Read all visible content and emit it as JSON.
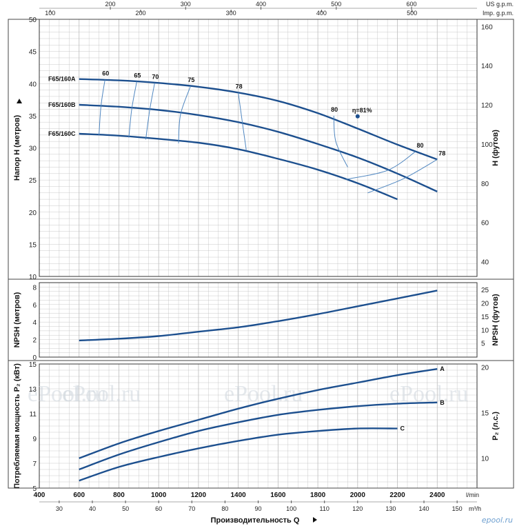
{
  "chart_data": [
    {
      "type": "line",
      "panel": "head",
      "ylabel": "Напор H (метров)",
      "y2label": "H (футов)",
      "ylim": [
        10,
        50
      ],
      "y2lim": [
        32.8,
        164
      ],
      "yticks": [
        10,
        15,
        20,
        25,
        30,
        35,
        40,
        45,
        50
      ],
      "y2ticks": [
        40,
        60,
        80,
        100,
        120,
        140,
        160
      ],
      "top_axes": [
        {
          "label": "US g.p.m.",
          "ticks": [
            200,
            300,
            400,
            500,
            600
          ]
        },
        {
          "label": "Imp. g.p.m.",
          "ticks": [
            100,
            200,
            300,
            400,
            500
          ]
        }
      ],
      "series": [
        {
          "name": "F65/160A",
          "x": [
            600,
            800,
            1000,
            1200,
            1400,
            1600,
            1800,
            2000,
            2200,
            2400
          ],
          "y": [
            40.7,
            40.5,
            40.1,
            39.5,
            38.6,
            37.3,
            35.4,
            33.0,
            30.5,
            28.2
          ]
        },
        {
          "name": "F65/160B",
          "x": [
            600,
            800,
            1000,
            1200,
            1400,
            1600,
            1800,
            2000,
            2200,
            2400
          ],
          "y": [
            36.7,
            36.4,
            35.9,
            35.1,
            34.0,
            32.5,
            30.6,
            28.5,
            26.0,
            23.2
          ]
        },
        {
          "name": "F65/160C",
          "x": [
            600,
            800,
            1000,
            1200,
            1400,
            1600,
            1800,
            2000,
            2200
          ],
          "y": [
            32.2,
            31.9,
            31.4,
            30.8,
            29.8,
            28.3,
            26.6,
            24.5,
            22.0
          ]
        }
      ],
      "efficiency_lines": [
        {
          "label": "60",
          "points": [
            [
              730,
              40.6
            ],
            [
              710,
              36.5
            ],
            [
              700,
              32.0
            ]
          ]
        },
        {
          "label": "65",
          "points": [
            [
              890,
              40.3
            ],
            [
              865,
              36.1
            ],
            [
              850,
              31.6
            ]
          ]
        },
        {
          "label": "70",
          "points": [
            [
              980,
              40.1
            ],
            [
              955,
              35.9
            ],
            [
              935,
              31.3
            ]
          ]
        },
        {
          "label": "75",
          "points": [
            [
              1160,
              39.6
            ],
            [
              1110,
              35.2
            ],
            [
              1100,
              30.7
            ]
          ]
        },
        {
          "label": "78",
          "points": [
            [
              1400,
              38.6
            ],
            [
              1420,
              34.1
            ],
            [
              1440,
              29.7
            ]
          ]
        },
        {
          "label": "80",
          "points": [
            [
              1880,
              35.0
            ],
            [
              1890,
              31.0
            ],
            [
              1950,
              27.0
            ]
          ]
        },
        {
          "label": "80",
          "points": [
            [
              2290,
              29.4
            ],
            [
              2150,
              26.5
            ],
            [
              1940,
              25.1
            ]
          ]
        },
        {
          "label": "78",
          "points": [
            [
              2400,
              28.2
            ],
            [
              2230,
              25.2
            ],
            [
              2050,
              23.0
            ]
          ]
        }
      ],
      "annotations": [
        {
          "text": "η=81%",
          "x": 2000,
          "y": 34.9
        }
      ]
    },
    {
      "type": "line",
      "panel": "npsh",
      "ylabel": "NPSH (метров)",
      "y2label": "NPSH (футов)",
      "ylim": [
        0,
        8.5
      ],
      "y2lim": [
        0,
        27.9
      ],
      "yticks": [
        0,
        2,
        4,
        6,
        8
      ],
      "y2ticks": [
        5,
        10,
        15,
        20,
        25
      ],
      "series": [
        {
          "name": "",
          "x": [
            600,
            800,
            1000,
            1200,
            1400,
            1600,
            1800,
            2000,
            2200,
            2400
          ],
          "y": [
            1.9,
            2.1,
            2.4,
            2.9,
            3.4,
            4.1,
            4.9,
            5.8,
            6.7,
            7.6
          ]
        }
      ]
    },
    {
      "type": "line",
      "panel": "power",
      "ylabel": "Потребляемая мощность P₂ (кВт)",
      "y2label": "P₂ (л.с.)",
      "ylim": [
        5,
        15
      ],
      "y2lim": [
        6.8,
        20.4
      ],
      "yticks": [
        5,
        7,
        9,
        11,
        13,
        15
      ],
      "y2ticks": [
        10,
        15,
        20
      ],
      "series": [
        {
          "name": "A",
          "x": [
            600,
            800,
            1000,
            1200,
            1400,
            1600,
            1800,
            2000,
            2200,
            2400
          ],
          "y": [
            7.4,
            8.6,
            9.6,
            10.5,
            11.4,
            12.2,
            12.9,
            13.5,
            14.1,
            14.6
          ]
        },
        {
          "name": "B",
          "x": [
            600,
            800,
            1000,
            1200,
            1400,
            1600,
            1800,
            2000,
            2200,
            2400
          ],
          "y": [
            6.5,
            7.7,
            8.7,
            9.6,
            10.3,
            10.9,
            11.3,
            11.6,
            11.8,
            11.9
          ]
        },
        {
          "name": "C",
          "x": [
            600,
            800,
            1000,
            1200,
            1400,
            1600,
            1800,
            2000,
            2200
          ],
          "y": [
            5.6,
            6.7,
            7.5,
            8.2,
            8.8,
            9.3,
            9.6,
            9.8,
            9.8
          ]
        }
      ]
    }
  ],
  "x_axis": {
    "label": "Производительность Q",
    "primary_unit": "l/min",
    "primary_ticks": [
      400,
      600,
      800,
      1000,
      1200,
      1400,
      1600,
      1800,
      2000,
      2200,
      2400
    ],
    "secondary_unit": "m³/h",
    "secondary_ticks": [
      30,
      40,
      50,
      60,
      70,
      80,
      90,
      100,
      110,
      120,
      130,
      140,
      150
    ],
    "xlim": [
      400,
      2600
    ]
  },
  "watermark": "ePool.ru",
  "footer_logo": "epool.ru",
  "colors": {
    "curve": "#1c4f8e",
    "efficiency": "#4f86c0",
    "grid": "#bcbcbc",
    "panel_border": "#333333",
    "watermark": "#cfd6dd"
  }
}
